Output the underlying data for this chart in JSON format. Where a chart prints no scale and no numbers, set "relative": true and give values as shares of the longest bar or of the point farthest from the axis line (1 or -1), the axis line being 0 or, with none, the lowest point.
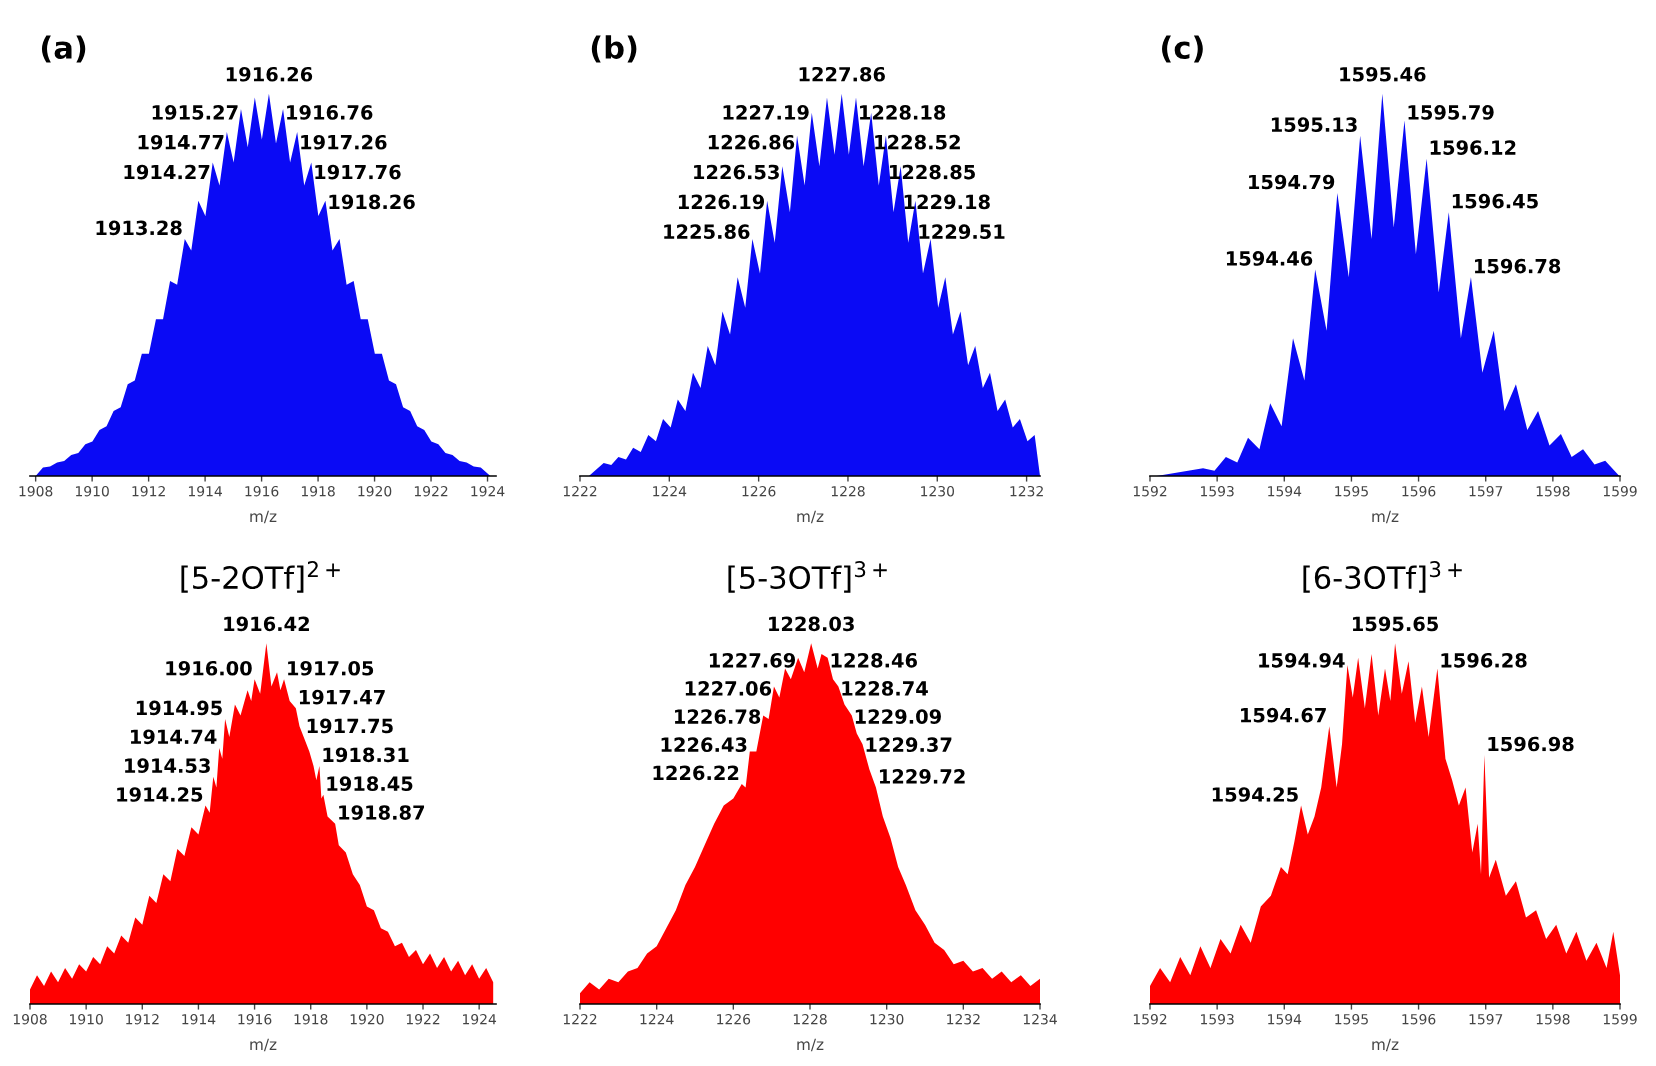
{
  "chart_data": [
    {
      "type": "area",
      "relative": true,
      "title": "(a)",
      "xlabel": "m/z",
      "color": "#0a0af5",
      "xlim": [
        1907.8,
        1924.3
      ],
      "xticks": [
        1908,
        1910,
        1912,
        1914,
        1916,
        1918,
        1920,
        1922,
        1924
      ],
      "x": [
        1908.0,
        1908.26,
        1908.51,
        1908.76,
        1909.01,
        1909.26,
        1909.51,
        1909.76,
        1910.01,
        1910.26,
        1910.51,
        1910.76,
        1911.01,
        1911.26,
        1911.51,
        1911.76,
        1912.01,
        1912.26,
        1912.51,
        1912.76,
        1913.01,
        1913.28,
        1913.51,
        1913.76,
        1914.01,
        1914.27,
        1914.51,
        1914.77,
        1915.01,
        1915.27,
        1915.51,
        1915.76,
        1916.01,
        1916.26,
        1916.51,
        1916.76,
        1917.01,
        1917.26,
        1917.51,
        1917.76,
        1918.01,
        1918.26,
        1918.51,
        1918.76,
        1919.01,
        1919.26,
        1919.51,
        1919.76,
        1920.01,
        1920.26,
        1920.51,
        1920.76,
        1921.01,
        1921.26,
        1921.51,
        1921.76,
        1922.01,
        1922.26,
        1922.51,
        1922.76,
        1923.01,
        1923.26,
        1923.51,
        1923.76,
        1924.1
      ],
      "values": [
        0,
        0.022,
        0.025,
        0.035,
        0.039,
        0.055,
        0.06,
        0.083,
        0.09,
        0.12,
        0.13,
        0.17,
        0.18,
        0.24,
        0.25,
        0.32,
        0.32,
        0.41,
        0.41,
        0.51,
        0.5,
        0.62,
        0.59,
        0.72,
        0.68,
        0.82,
        0.76,
        0.9,
        0.82,
        0.96,
        0.86,
        0.99,
        0.88,
        1.0,
        0.87,
        0.96,
        0.82,
        0.9,
        0.76,
        0.82,
        0.68,
        0.72,
        0.59,
        0.62,
        0.5,
        0.51,
        0.41,
        0.41,
        0.32,
        0.32,
        0.25,
        0.24,
        0.18,
        0.17,
        0.13,
        0.12,
        0.09,
        0.083,
        0.06,
        0.055,
        0.039,
        0.035,
        0.025,
        0.022,
        0
      ],
      "annotations": [
        {
          "text": "1913.28",
          "x": 1913.28,
          "y": 0.62
        },
        {
          "text": "1914.27",
          "x": 1914.27,
          "y": 0.82
        },
        {
          "text": "1914.77",
          "x": 1914.77,
          "y": 0.9
        },
        {
          "text": "1915.27",
          "x": 1915.27,
          "y": 0.96
        },
        {
          "text": "1916.26",
          "x": 1916.26,
          "y": 1.0
        },
        {
          "text": "1916.76",
          "x": 1916.76,
          "y": 0.96
        },
        {
          "text": "1917.26",
          "x": 1917.26,
          "y": 0.9
        },
        {
          "text": "1917.76",
          "x": 1917.76,
          "y": 0.82
        },
        {
          "text": "1918.26",
          "x": 1918.26,
          "y": 0.72
        }
      ]
    },
    {
      "type": "area",
      "relative": true,
      "title": "(b)",
      "xlabel": "m/z",
      "color": "#0a0af5",
      "xlim": [
        1222,
        1232.3
      ],
      "xticks": [
        1222,
        1224,
        1226,
        1228,
        1230,
        1232
      ],
      "x": [
        1222.2,
        1222.53,
        1222.7,
        1222.86,
        1223.03,
        1223.19,
        1223.36,
        1223.53,
        1223.7,
        1223.86,
        1224.03,
        1224.19,
        1224.36,
        1224.53,
        1224.7,
        1224.86,
        1225.03,
        1225.19,
        1225.36,
        1225.53,
        1225.7,
        1225.86,
        1226.03,
        1226.19,
        1226.36,
        1226.53,
        1226.7,
        1226.86,
        1227.03,
        1227.19,
        1227.36,
        1227.53,
        1227.7,
        1227.86,
        1228.02,
        1228.18,
        1228.35,
        1228.52,
        1228.69,
        1228.85,
        1229.02,
        1229.18,
        1229.35,
        1229.51,
        1229.68,
        1229.85,
        1230.02,
        1230.18,
        1230.35,
        1230.52,
        1230.69,
        1230.85,
        1231.02,
        1231.18,
        1231.35,
        1231.52,
        1231.69,
        1231.85,
        1232.02,
        1232.18,
        1232.3
      ],
      "values": [
        0,
        0.034,
        0.029,
        0.05,
        0.043,
        0.074,
        0.063,
        0.107,
        0.091,
        0.149,
        0.127,
        0.2,
        0.17,
        0.27,
        0.23,
        0.34,
        0.29,
        0.43,
        0.37,
        0.52,
        0.44,
        0.62,
        0.53,
        0.72,
        0.61,
        0.81,
        0.69,
        0.89,
        0.76,
        0.95,
        0.81,
        0.99,
        0.84,
        1.0,
        0.84,
        0.99,
        0.81,
        0.95,
        0.76,
        0.89,
        0.69,
        0.81,
        0.61,
        0.72,
        0.53,
        0.62,
        0.44,
        0.52,
        0.37,
        0.43,
        0.29,
        0.34,
        0.23,
        0.27,
        0.17,
        0.2,
        0.127,
        0.149,
        0.091,
        0.107,
        0
      ],
      "annotations": [
        {
          "text": "1225.86",
          "x": 1225.86,
          "y": 0.62
        },
        {
          "text": "1226.19",
          "x": 1226.19,
          "y": 0.72
        },
        {
          "text": "1226.53",
          "x": 1226.53,
          "y": 0.81
        },
        {
          "text": "1226.86",
          "x": 1226.86,
          "y": 0.89
        },
        {
          "text": "1227.19",
          "x": 1227.19,
          "y": 0.95
        },
        {
          "text": "1227.86",
          "x": 1227.86,
          "y": 1.0
        },
        {
          "text": "1228.18",
          "x": 1228.18,
          "y": 0.99
        },
        {
          "text": "1228.52",
          "x": 1228.52,
          "y": 0.95
        },
        {
          "text": "1228.85",
          "x": 1228.85,
          "y": 0.89
        },
        {
          "text": "1229.18",
          "x": 1229.18,
          "y": 0.81
        },
        {
          "text": "1229.51",
          "x": 1229.51,
          "y": 0.72
        }
      ]
    },
    {
      "type": "area",
      "relative": true,
      "title": "(c)",
      "xlabel": "m/z",
      "color": "#0a0af5",
      "xlim": [
        1592,
        1599
      ],
      "xticks": [
        1592,
        1593,
        1594,
        1595,
        1596,
        1597,
        1598,
        1599
      ],
      "x": [
        1592.1,
        1592.79,
        1592.96,
        1593.13,
        1593.3,
        1593.46,
        1593.63,
        1593.79,
        1593.96,
        1594.13,
        1594.3,
        1594.46,
        1594.63,
        1594.79,
        1594.96,
        1595.13,
        1595.3,
        1595.46,
        1595.63,
        1595.79,
        1595.96,
        1596.12,
        1596.3,
        1596.45,
        1596.63,
        1596.78,
        1596.95,
        1597.12,
        1597.28,
        1597.45,
        1597.62,
        1597.78,
        1597.95,
        1598.12,
        1598.28,
        1598.45,
        1598.62,
        1598.78,
        1598.99
      ],
      "values": [
        0,
        0.02,
        0.014,
        0.05,
        0.035,
        0.1,
        0.07,
        0.19,
        0.13,
        0.36,
        0.25,
        0.54,
        0.38,
        0.74,
        0.52,
        0.89,
        0.62,
        1.0,
        0.65,
        0.93,
        0.58,
        0.83,
        0.48,
        0.69,
        0.36,
        0.52,
        0.27,
        0.38,
        0.17,
        0.24,
        0.12,
        0.17,
        0.08,
        0.11,
        0.05,
        0.07,
        0.03,
        0.04,
        0
      ],
      "annotations": [
        {
          "text": "1594.46",
          "x": 1594.46,
          "y": 0.54
        },
        {
          "text": "1594.79",
          "x": 1594.79,
          "y": 0.74
        },
        {
          "text": "1595.13",
          "x": 1595.13,
          "y": 0.89
        },
        {
          "text": "1595.46",
          "x": 1595.46,
          "y": 1.0
        },
        {
          "text": "1595.79",
          "x": 1595.79,
          "y": 0.93
        },
        {
          "text": "1596.12",
          "x": 1596.12,
          "y": 0.83
        },
        {
          "text": "1596.45",
          "x": 1596.45,
          "y": 0.69
        },
        {
          "text": "1596.78",
          "x": 1596.78,
          "y": 0.52
        }
      ]
    },
    {
      "type": "area",
      "relative": true,
      "title": "[5-2OTf]$^{2+}$",
      "xlabel": "m/z",
      "color": "#ff0000",
      "xlim": [
        1908,
        1924.6
      ],
      "xticks": [
        1908,
        1910,
        1912,
        1914,
        1916,
        1918,
        1920,
        1922,
        1924
      ],
      "x": [
        1908,
        1908.25,
        1908.5,
        1908.75,
        1909,
        1909.25,
        1909.5,
        1909.75,
        1910,
        1910.25,
        1910.5,
        1910.75,
        1911,
        1911.25,
        1911.5,
        1911.75,
        1912,
        1912.25,
        1912.5,
        1912.75,
        1913,
        1913.25,
        1913.5,
        1913.75,
        1914,
        1914.25,
        1914.4,
        1914.53,
        1914.64,
        1914.74,
        1914.85,
        1914.95,
        1915.1,
        1915.3,
        1915.5,
        1915.75,
        1915.88,
        1916.0,
        1916.2,
        1916.42,
        1916.6,
        1916.8,
        1916.92,
        1917.05,
        1917.25,
        1917.47,
        1917.6,
        1917.75,
        1917.95,
        1918.1,
        1918.2,
        1918.31,
        1918.38,
        1918.45,
        1918.6,
        1918.87,
        1919,
        1919.25,
        1919.5,
        1919.75,
        1920,
        1920.25,
        1920.5,
        1920.75,
        1921,
        1921.25,
        1921.5,
        1921.75,
        1922,
        1922.25,
        1922.5,
        1922.75,
        1923,
        1923.25,
        1923.5,
        1923.75,
        1924,
        1924.25,
        1924.5
      ],
      "values": [
        0.04,
        0.08,
        0.05,
        0.09,
        0.06,
        0.1,
        0.07,
        0.11,
        0.09,
        0.13,
        0.11,
        0.16,
        0.14,
        0.19,
        0.17,
        0.24,
        0.22,
        0.3,
        0.28,
        0.36,
        0.34,
        0.43,
        0.41,
        0.49,
        0.47,
        0.55,
        0.53,
        0.63,
        0.6,
        0.71,
        0.68,
        0.79,
        0.74,
        0.83,
        0.8,
        0.87,
        0.84,
        0.9,
        0.86,
        1.0,
        0.88,
        0.92,
        0.87,
        0.9,
        0.84,
        0.82,
        0.77,
        0.74,
        0.7,
        0.66,
        0.62,
        0.66,
        0.57,
        0.58,
        0.52,
        0.5,
        0.44,
        0.42,
        0.36,
        0.33,
        0.27,
        0.26,
        0.21,
        0.2,
        0.16,
        0.17,
        0.13,
        0.15,
        0.11,
        0.14,
        0.1,
        0.13,
        0.09,
        0.12,
        0.08,
        0.11,
        0.07,
        0.1,
        0.06
      ],
      "annotations": [
        {
          "text": "1914.25",
          "x": 1914.25,
          "y": 0.55
        },
        {
          "text": "1914.53",
          "x": 1914.53,
          "y": 0.63
        },
        {
          "text": "1914.74",
          "x": 1914.74,
          "y": 0.71
        },
        {
          "text": "1914.95",
          "x": 1914.95,
          "y": 0.79
        },
        {
          "text": "1916.00",
          "x": 1916.0,
          "y": 0.9
        },
        {
          "text": "1916.42",
          "x": 1916.42,
          "y": 1.0
        },
        {
          "text": "1917.05",
          "x": 1917.05,
          "y": 0.9
        },
        {
          "text": "1917.47",
          "x": 1917.47,
          "y": 0.82
        },
        {
          "text": "1917.75",
          "x": 1917.75,
          "y": 0.74
        },
        {
          "text": "1918.31",
          "x": 1918.31,
          "y": 0.66
        },
        {
          "text": "1918.45",
          "x": 1918.45,
          "y": 0.58
        },
        {
          "text": "1918.87",
          "x": 1918.87,
          "y": 0.5
        }
      ]
    },
    {
      "type": "area",
      "relative": true,
      "title": "[5-3OTf]$^{3+}$",
      "xlabel": "m/z",
      "color": "#ff0000",
      "xlim": [
        1222,
        1234
      ],
      "xticks": [
        1222,
        1224,
        1226,
        1228,
        1230,
        1232,
        1234
      ],
      "x": [
        1222,
        1222.25,
        1222.5,
        1222.75,
        1223,
        1223.25,
        1223.5,
        1223.75,
        1224,
        1224.25,
        1224.5,
        1224.75,
        1225,
        1225.25,
        1225.5,
        1225.75,
        1226,
        1226.22,
        1226.32,
        1226.43,
        1226.6,
        1226.78,
        1226.92,
        1227.06,
        1227.2,
        1227.35,
        1227.5,
        1227.69,
        1227.85,
        1228.03,
        1228.2,
        1228.3,
        1228.46,
        1228.6,
        1228.74,
        1228.9,
        1229.09,
        1229.22,
        1229.37,
        1229.55,
        1229.72,
        1229.9,
        1230.1,
        1230.3,
        1230.5,
        1230.75,
        1231,
        1231.25,
        1231.5,
        1231.75,
        1232,
        1232.25,
        1232.5,
        1232.75,
        1233,
        1233.25,
        1233.5,
        1233.75,
        1234
      ],
      "values": [
        0.03,
        0.06,
        0.04,
        0.07,
        0.06,
        0.09,
        0.1,
        0.14,
        0.16,
        0.21,
        0.26,
        0.33,
        0.38,
        0.44,
        0.5,
        0.55,
        0.57,
        0.61,
        0.6,
        0.7,
        0.7,
        0.8,
        0.79,
        0.88,
        0.85,
        0.93,
        0.9,
        0.96,
        0.92,
        1.0,
        0.93,
        0.97,
        0.96,
        0.9,
        0.88,
        0.83,
        0.8,
        0.75,
        0.72,
        0.65,
        0.6,
        0.52,
        0.46,
        0.38,
        0.33,
        0.26,
        0.22,
        0.17,
        0.15,
        0.11,
        0.12,
        0.09,
        0.1,
        0.07,
        0.09,
        0.06,
        0.08,
        0.05,
        0.07
      ],
      "annotations": [
        {
          "text": "1226.22",
          "x": 1226.22,
          "y": 0.61
        },
        {
          "text": "1226.43",
          "x": 1226.43,
          "y": 0.7
        },
        {
          "text": "1226.78",
          "x": 1226.78,
          "y": 0.8
        },
        {
          "text": "1227.06",
          "x": 1227.06,
          "y": 0.88
        },
        {
          "text": "1227.69",
          "x": 1227.69,
          "y": 0.96
        },
        {
          "text": "1228.03",
          "x": 1228.03,
          "y": 1.0
        },
        {
          "text": "1228.46",
          "x": 1228.46,
          "y": 0.96
        },
        {
          "text": "1228.74",
          "x": 1228.74,
          "y": 0.88
        },
        {
          "text": "1229.09",
          "x": 1229.09,
          "y": 0.8
        },
        {
          "text": "1229.37",
          "x": 1229.37,
          "y": 0.72
        },
        {
          "text": "1229.72",
          "x": 1229.72,
          "y": 0.6
        }
      ]
    },
    {
      "type": "area",
      "relative": true,
      "title": "[6-3OTf]$^{3+}$",
      "xlabel": "m/z",
      "color": "#ff0000",
      "xlim": [
        1592,
        1599
      ],
      "xticks": [
        1592,
        1593,
        1594,
        1595,
        1596,
        1597,
        1598,
        1599
      ],
      "x": [
        1592,
        1592.15,
        1592.3,
        1592.45,
        1592.6,
        1592.75,
        1592.9,
        1593.05,
        1593.2,
        1593.35,
        1593.5,
        1593.65,
        1593.8,
        1593.95,
        1594.05,
        1594.15,
        1594.25,
        1594.35,
        1594.45,
        1594.55,
        1594.67,
        1594.78,
        1594.86,
        1594.94,
        1595.02,
        1595.1,
        1595.2,
        1595.3,
        1595.4,
        1595.5,
        1595.58,
        1595.65,
        1595.75,
        1595.85,
        1595.95,
        1596.05,
        1596.15,
        1596.28,
        1596.4,
        1596.5,
        1596.6,
        1596.7,
        1596.8,
        1596.88,
        1596.93,
        1596.98,
        1597.05,
        1597.15,
        1597.3,
        1597.45,
        1597.6,
        1597.75,
        1597.9,
        1598.05,
        1598.2,
        1598.35,
        1598.5,
        1598.65,
        1598.8,
        1598.9,
        1599
      ],
      "values": [
        0.05,
        0.1,
        0.06,
        0.13,
        0.08,
        0.16,
        0.1,
        0.18,
        0.14,
        0.22,
        0.17,
        0.27,
        0.3,
        0.38,
        0.36,
        0.45,
        0.55,
        0.47,
        0.52,
        0.6,
        0.77,
        0.6,
        0.72,
        0.94,
        0.85,
        0.96,
        0.82,
        0.97,
        0.8,
        0.93,
        0.84,
        1.0,
        0.86,
        0.95,
        0.78,
        0.88,
        0.74,
        0.93,
        0.68,
        0.62,
        0.55,
        0.6,
        0.42,
        0.5,
        0.36,
        0.69,
        0.35,
        0.4,
        0.3,
        0.34,
        0.24,
        0.26,
        0.18,
        0.22,
        0.14,
        0.2,
        0.12,
        0.17,
        0.1,
        0.2,
        0.08
      ],
      "annotations": [
        {
          "text": "1594.25",
          "x": 1594.25,
          "y": 0.55
        },
        {
          "text": "1594.67",
          "x": 1594.67,
          "y": 0.77
        },
        {
          "text": "1594.94",
          "x": 1594.94,
          "y": 0.94
        },
        {
          "text": "1595.65",
          "x": 1595.65,
          "y": 1.0
        },
        {
          "text": "1596.28",
          "x": 1596.28,
          "y": 0.93
        },
        {
          "text": "1596.98",
          "x": 1596.98,
          "y": 0.69
        }
      ]
    }
  ]
}
